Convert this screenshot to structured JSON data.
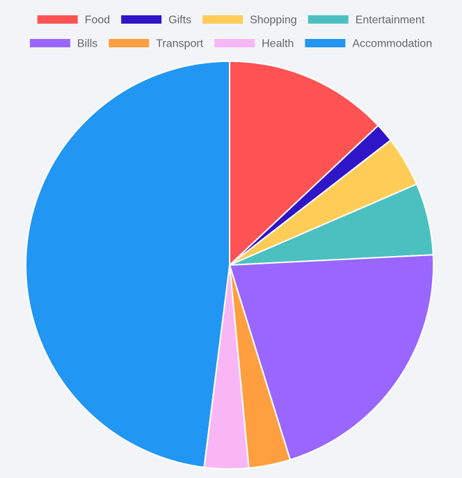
{
  "chart_data": {
    "type": "pie",
    "legend_position": "top",
    "categories": [
      "Food",
      "Gifts",
      "Shopping",
      "Entertainment",
      "Bills",
      "Transport",
      "Health",
      "Accommodation"
    ],
    "values": [
      13.0,
      1.5,
      4.0,
      5.7,
      21.0,
      3.3,
      3.5,
      48.0
    ],
    "colors": [
      "#ff5252",
      "#2f15c8",
      "#ffcd57",
      "#4bc0c0",
      "#9966ff",
      "#ff9f40",
      "#f9b6f5",
      "#2196f3"
    ],
    "title": ""
  }
}
